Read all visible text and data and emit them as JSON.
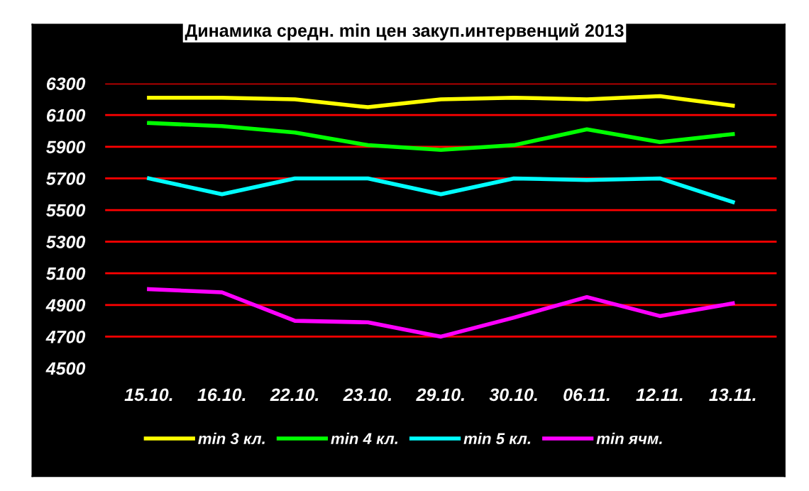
{
  "chart_data": {
    "type": "line",
    "title": "Динамика средн. min цен закуп.интервенций 2013",
    "categories": [
      "15.10.",
      "16.10.",
      "22.10.",
      "23.10.",
      "29.10.",
      "30.10.",
      "06.11.",
      "12.11.",
      "13.11."
    ],
    "series": [
      {
        "name": "min 3 кл.",
        "color": "#ffff00",
        "values": [
          6210,
          6210,
          6200,
          6150,
          6200,
          6210,
          6200,
          6220,
          6160
        ]
      },
      {
        "name": "min 4 кл.",
        "color": "#00ff00",
        "values": [
          6050,
          6030,
          5990,
          5910,
          5880,
          5910,
          6010,
          5930,
          5980
        ]
      },
      {
        "name": "min 5 кл.",
        "color": "#00ffff",
        "values": [
          5700,
          5600,
          5700,
          5700,
          5600,
          5700,
          5690,
          5700,
          5550
        ]
      },
      {
        "name": "min ячм.",
        "color": "#ff00ff",
        "values": [
          5000,
          4980,
          4800,
          4790,
          4700,
          4820,
          4950,
          4830,
          4910
        ]
      }
    ],
    "ylim": [
      4500,
      6300
    ],
    "yticks": [
      4500,
      4700,
      4900,
      5100,
      5300,
      5500,
      5700,
      5900,
      6100,
      6300
    ],
    "grid": "y",
    "legend": "bottom",
    "marker": "none",
    "line_style": "solid"
  }
}
